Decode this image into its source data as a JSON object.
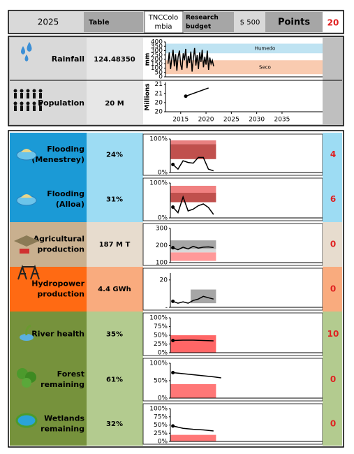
{
  "header": {
    "year": "2025",
    "table_label": "Table",
    "location": [
      "TNCColo",
      "mbia"
    ],
    "research_label": [
      "Research",
      "budget"
    ],
    "budget": "$  500",
    "points_label": "Points",
    "points": "20"
  },
  "climate": {
    "rainfall": {
      "label": "Rainfall",
      "value": "124.48350"
    },
    "population": {
      "label": "Population",
      "value": "20 M"
    }
  },
  "indicators": [
    {
      "name": [
        "Flooding",
        "(Menestrey)"
      ],
      "value": "24%",
      "points": "4"
    },
    {
      "name": [
        "Flooding",
        "(Alloa)"
      ],
      "value": "31%",
      "points": "6"
    },
    {
      "name": [
        "Agricultural",
        "production"
      ],
      "value": "187 M T",
      "points": "0"
    },
    {
      "name": [
        "Hydropower",
        "production"
      ],
      "value": "4.4 GWh",
      "points": "0"
    },
    {
      "name": [
        "River health"
      ],
      "value": "35%",
      "points": "10"
    },
    {
      "name": [
        "Forest",
        "remaining"
      ],
      "value": "61%",
      "points": "0"
    },
    {
      "name": [
        "Wetlands",
        "remaining"
      ],
      "value": "32%",
      "points": "0"
    }
  ],
  "chart_data": [
    {
      "type": "line",
      "ylabel": "mm",
      "xlim": [
        2012,
        2043
      ],
      "ylim": [
        0,
        400
      ],
      "yticks": [
        0,
        50,
        100,
        150,
        200,
        250,
        300,
        350,
        400
      ],
      "bands": [
        {
          "name": "Humedo",
          "range": [
            270,
            380
          ],
          "color": "#bfe3f2"
        },
        {
          "name": "Seco",
          "range": [
            30,
            190
          ],
          "color": "#f9cbb0"
        }
      ],
      "x": [
        2012.5,
        2012.75,
        2013,
        2013.25,
        2013.5,
        2013.75,
        2014,
        2014.25,
        2014.5,
        2014.75,
        2015,
        2015.25,
        2015.5,
        2015.75,
        2016,
        2016.25,
        2016.5,
        2016.75,
        2017,
        2017.25,
        2017.5,
        2017.75,
        2018,
        2018.25,
        2018.5,
        2018.75,
        2019,
        2019.25,
        2019.5,
        2019.75,
        2020,
        2020.25,
        2020.5,
        2020.75,
        2021,
        2021.25,
        2021.5
      ],
      "series": [
        {
          "color": "#000000",
          "values": [
            150,
            280,
            90,
            210,
            310,
            120,
            260,
            70,
            230,
            300,
            140,
            80,
            270,
            190,
            320,
            100,
            240,
            160,
            290,
            60,
            210,
            330,
            130,
            250,
            90,
            280,
            170,
            310,
            110,
            230,
            140,
            300,
            80,
            220,
            150,
            190,
            120
          ]
        }
      ]
    },
    {
      "type": "line",
      "ylabel": "Millions",
      "xlim": [
        2012,
        2043
      ],
      "ylim": [
        19.5,
        21.1
      ],
      "yticks": [
        {
          "value": 19.5,
          "label": "20"
        },
        20,
        {
          "value": 20.5,
          "label": "21"
        },
        21
      ],
      "xticks": [
        2015,
        2020,
        2025,
        2030,
        2035
      ],
      "start_marker": true,
      "x": [
        2016,
        2020.5
      ],
      "series": [
        {
          "color": "#000000",
          "values": [
            20.35,
            20.8
          ]
        }
      ]
    },
    {
      "type": "line",
      "xlim": [
        2013,
        2043
      ],
      "ylim": [
        0,
        100
      ],
      "yticks": [
        {
          "value": 0,
          "label": "0%"
        },
        {
          "value": 100,
          "label": "100%"
        }
      ],
      "bands": [
        {
          "range": [
            40,
            85
          ],
          "xrange": [
            2013,
            2022
          ],
          "color": "#c0504d"
        },
        {
          "range": [
            85,
            96
          ],
          "xrange": [
            2013,
            2022
          ],
          "color": "#e88080"
        }
      ],
      "start_marker": true,
      "x": [
        2013.5,
        2014.5,
        2015.5,
        2016.5,
        2017.5,
        2018.5,
        2019.5,
        2020.5,
        2021.5
      ],
      "series": [
        {
          "color": "#000000",
          "values": [
            24,
            10,
            35,
            30,
            28,
            45,
            45,
            10,
            5
          ]
        }
      ]
    },
    {
      "type": "line",
      "xlim": [
        2013,
        2043
      ],
      "ylim": [
        0,
        100
      ],
      "yticks": [
        {
          "value": 0,
          "label": "0%"
        },
        {
          "value": 100,
          "label": "100%"
        }
      ],
      "bands": [
        {
          "range": [
            72,
            92
          ],
          "xrange": [
            2013,
            2022
          ],
          "color": "#f08080"
        },
        {
          "range": [
            45,
            72
          ],
          "xrange": [
            2013,
            2022
          ],
          "color": "#c0504d"
        }
      ],
      "start_marker": true,
      "x": [
        2013.5,
        2014.5,
        2015.5,
        2016.5,
        2017.5,
        2018.5,
        2019.5,
        2020.5,
        2021.5
      ],
      "series": [
        {
          "color": "#000000",
          "values": [
            31,
            15,
            60,
            20,
            25,
            35,
            40,
            30,
            10
          ]
        }
      ]
    },
    {
      "type": "line",
      "xlim": [
        2013,
        2043
      ],
      "ylim": [
        100,
        300
      ],
      "yticks": [
        100,
        200,
        300
      ],
      "bands": [
        {
          "range": [
            110,
            160
          ],
          "xrange": [
            2013,
            2022
          ],
          "color": "#ff9999"
        },
        {
          "range": [
            160,
            180
          ],
          "xrange": [
            2013,
            2022
          ],
          "color": "#d9d9d9"
        },
        {
          "range": [
            180,
            230
          ],
          "xrange": [
            2013,
            2022
          ],
          "color": "#a6a6a6"
        }
      ],
      "start_marker": true,
      "x": [
        2013.5,
        2014.5,
        2015.5,
        2016.5,
        2017.5,
        2018.5,
        2019.5,
        2020.5,
        2021.5
      ],
      "series": [
        {
          "color": "#000000",
          "values": [
            187,
            175,
            190,
            180,
            195,
            185,
            190,
            192,
            188
          ]
        }
      ]
    },
    {
      "type": "line",
      "xlim": [
        2013,
        2043
      ],
      "ylim": [
        0,
        25
      ],
      "yticks": [
        {
          "value": 0,
          "label": "-"
        },
        20
      ],
      "bands": [
        {
          "range": [
            3,
            13
          ],
          "xrange": [
            2017,
            2022
          ],
          "color": "#a6a6a6"
        }
      ],
      "start_marker": true,
      "x": [
        2013.5,
        2014.5,
        2015.5,
        2016.5,
        2017.5,
        2018.5,
        2019.5,
        2020.5,
        2021.5
      ],
      "series": [
        {
          "color": "#000000",
          "values": [
            4.4,
            3,
            4,
            3,
            5,
            6,
            8,
            7,
            6
          ]
        }
      ]
    },
    {
      "type": "line",
      "xlim": [
        2013,
        2043
      ],
      "ylim": [
        0,
        100
      ],
      "yticks": [
        {
          "value": 0,
          "label": "0%"
        },
        {
          "value": 25,
          "label": "25%"
        },
        {
          "value": 50,
          "label": "50%"
        },
        {
          "value": 75,
          "label": "75%"
        },
        {
          "value": 100,
          "label": "100%"
        }
      ],
      "bands": [
        {
          "range": [
            0,
            50
          ],
          "xrange": [
            2013,
            2022
          ],
          "color": "#ff6666"
        }
      ],
      "start_marker": true,
      "x": [
        2013.5,
        2015.5,
        2017.5,
        2019.5,
        2021.5
      ],
      "series": [
        {
          "color": "#000000",
          "values": [
            35,
            36,
            36,
            35,
            34
          ]
        }
      ]
    },
    {
      "type": "line",
      "xlim": [
        2013,
        2043
      ],
      "ylim": [
        0,
        100
      ],
      "yticks": [
        {
          "value": 0,
          "label": "0%"
        },
        {
          "value": 50,
          "label": "50%"
        },
        {
          "value": 100,
          "label": "100%"
        }
      ],
      "bands": [
        {
          "range": [
            0,
            40
          ],
          "xrange": [
            2013,
            2022
          ],
          "color": "#ff7777"
        }
      ],
      "start_marker": true,
      "x": [
        2013.5,
        2015.5,
        2017.5,
        2019.5,
        2021.5,
        2023
      ],
      "series": [
        {
          "color": "#000000",
          "values": [
            73,
            70,
            67,
            64,
            61,
            58
          ]
        }
      ]
    },
    {
      "type": "line",
      "xlim": [
        2013,
        2043
      ],
      "ylim": [
        0,
        100
      ],
      "yticks": [
        {
          "value": 0,
          "label": "0%"
        },
        {
          "value": 25,
          "label": "25%"
        },
        {
          "value": 50,
          "label": "50%"
        },
        {
          "value": 75,
          "label": "75%"
        },
        {
          "value": 100,
          "label": "100%"
        }
      ],
      "bands": [
        {
          "range": [
            0,
            20
          ],
          "xrange": [
            2013,
            2022
          ],
          "color": "#ff7777"
        }
      ],
      "start_marker": true,
      "x": [
        2013.5,
        2015.5,
        2017.5,
        2019.5,
        2021.5
      ],
      "series": [
        {
          "color": "#000000",
          "values": [
            47,
            40,
            37,
            35,
            32
          ]
        }
      ]
    }
  ]
}
